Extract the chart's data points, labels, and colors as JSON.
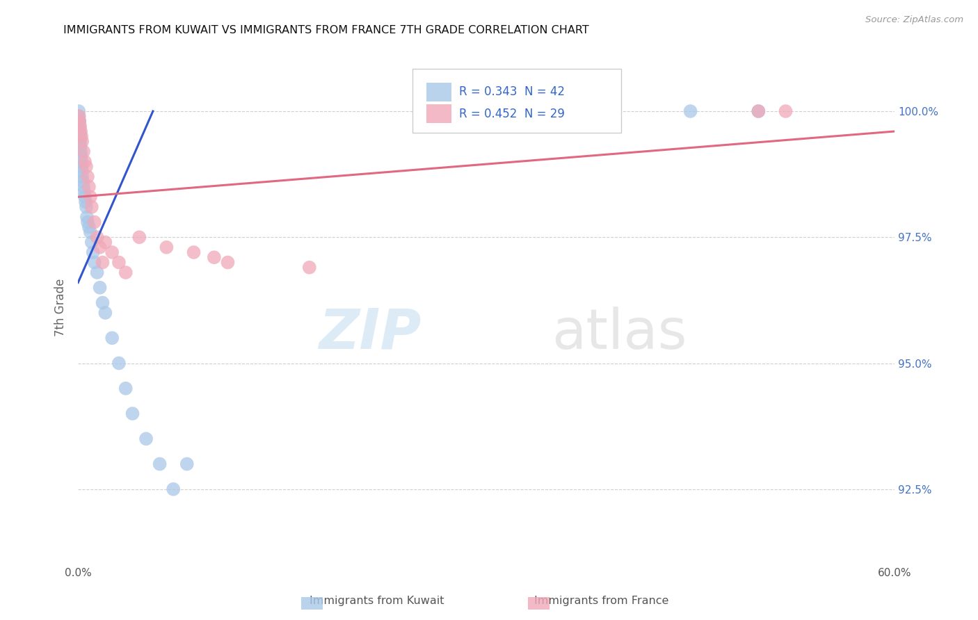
{
  "title": "IMMIGRANTS FROM KUWAIT VS IMMIGRANTS FROM FRANCE 7TH GRADE CORRELATION CHART",
  "source": "Source: ZipAtlas.com",
  "ylabel": "7th Grade",
  "xlim": [
    0.0,
    60.0
  ],
  "ylim": [
    91.0,
    101.2
  ],
  "yticks": [
    92.5,
    95.0,
    97.5,
    100.0
  ],
  "ytick_labels": [
    "92.5%",
    "95.0%",
    "97.5%",
    "100.0%"
  ],
  "kuwait_R": 0.343,
  "kuwait_N": 42,
  "france_R": 0.452,
  "france_N": 29,
  "kuwait_color": "#a8c8e8",
  "france_color": "#f0a8b8",
  "kuwait_line_color": "#3355cc",
  "france_line_color": "#e06880",
  "watermark_zip": "ZIP",
  "watermark_atlas": "atlas",
  "background_color": "#ffffff",
  "kuwait_x": [
    0.05,
    0.05,
    0.08,
    0.1,
    0.1,
    0.12,
    0.15,
    0.15,
    0.18,
    0.2,
    0.22,
    0.25,
    0.28,
    0.3,
    0.3,
    0.35,
    0.4,
    0.45,
    0.5,
    0.55,
    0.6,
    0.65,
    0.7,
    0.8,
    0.9,
    1.0,
    1.1,
    1.2,
    1.4,
    1.6,
    1.8,
    2.0,
    2.5,
    3.0,
    3.5,
    4.0,
    5.0,
    6.0,
    7.0,
    8.0,
    45.0,
    50.0
  ],
  "kuwait_y": [
    100.0,
    99.9,
    99.8,
    99.8,
    99.7,
    99.6,
    99.5,
    99.4,
    99.3,
    99.2,
    99.1,
    99.0,
    98.9,
    98.8,
    98.7,
    98.6,
    98.5,
    98.4,
    98.3,
    98.2,
    98.1,
    97.9,
    97.8,
    97.7,
    97.6,
    97.4,
    97.2,
    97.0,
    96.8,
    96.5,
    96.2,
    96.0,
    95.5,
    95.0,
    94.5,
    94.0,
    93.5,
    93.0,
    92.5,
    93.0,
    100.0,
    100.0
  ],
  "france_x": [
    0.08,
    0.1,
    0.15,
    0.2,
    0.25,
    0.3,
    0.4,
    0.5,
    0.6,
    0.7,
    0.8,
    0.9,
    1.0,
    1.2,
    1.4,
    1.6,
    1.8,
    2.0,
    2.5,
    3.0,
    3.5,
    4.5,
    6.5,
    8.5,
    10.0,
    11.0,
    17.0,
    50.0,
    52.0
  ],
  "france_y": [
    99.9,
    99.8,
    99.7,
    99.6,
    99.5,
    99.4,
    99.2,
    99.0,
    98.9,
    98.7,
    98.5,
    98.3,
    98.1,
    97.8,
    97.5,
    97.3,
    97.0,
    97.4,
    97.2,
    97.0,
    96.8,
    97.5,
    97.3,
    97.2,
    97.1,
    97.0,
    96.9,
    100.0,
    100.0
  ],
  "trendline_kuw_x0": 0.0,
  "trendline_kuw_y0": 96.6,
  "trendline_kuw_x1": 5.5,
  "trendline_kuw_y1": 100.0,
  "trendline_fra_x0": 0.0,
  "trendline_fra_y0": 98.3,
  "trendline_fra_x1": 60.0,
  "trendline_fra_y1": 99.6
}
